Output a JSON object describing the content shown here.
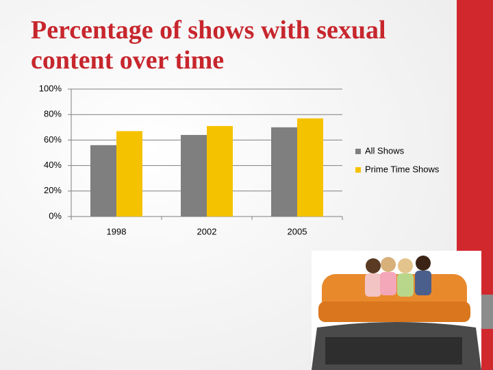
{
  "chart_data": {
    "type": "bar",
    "title": "Percentage of shows with sexual content over time",
    "categories": [
      "1998",
      "2002",
      "2005"
    ],
    "series": [
      {
        "name": "All Shows",
        "color": "#7f7f7f",
        "values": [
          56,
          64,
          70
        ]
      },
      {
        "name": "Prime Time Shows",
        "color": "#f5c200",
        "values": [
          67,
          71,
          77
        ]
      }
    ],
    "ylim": [
      0,
      100
    ],
    "yticks": [
      {
        "value": 0,
        "label": "0%"
      },
      {
        "value": 20,
        "label": "20%"
      },
      {
        "value": 40,
        "label": "40%"
      },
      {
        "value": 60,
        "label": "60%"
      },
      {
        "value": 80,
        "label": "80%"
      },
      {
        "value": 100,
        "label": "100%"
      }
    ],
    "grid": true,
    "legend": "right"
  }
}
